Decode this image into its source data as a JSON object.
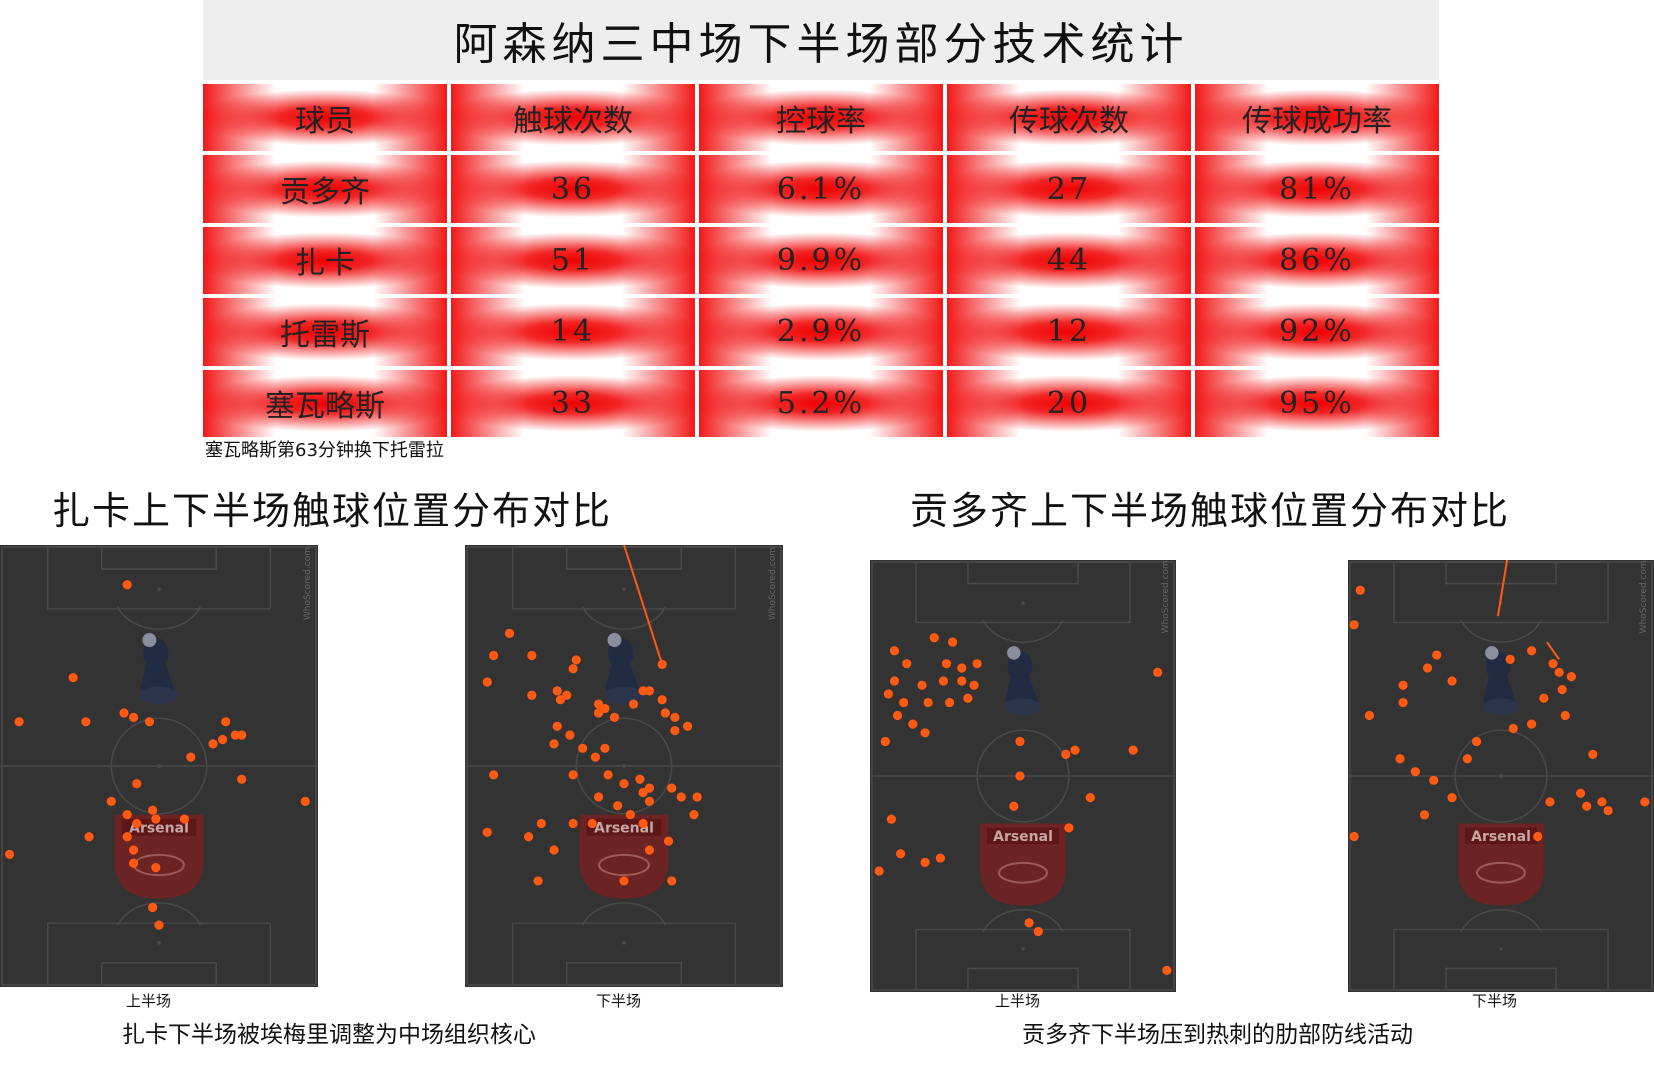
{
  "title": "阿森纳三中场下半场部分技术统计",
  "table": {
    "headers": [
      "球员",
      "触球次数",
      "控球率",
      "传球次数",
      "传球成功率"
    ],
    "rows": [
      [
        "贡多齐",
        "36",
        "6.1%",
        "27",
        "81%"
      ],
      [
        "扎卡",
        "51",
        "9.9%",
        "44",
        "86%"
      ],
      [
        "托雷斯",
        "14",
        "2.9%",
        "12",
        "92%"
      ],
      [
        "塞瓦略斯",
        "33",
        "5.2%",
        "20",
        "95%"
      ]
    ]
  },
  "note": "塞瓦略斯第63分钟换下托雷拉",
  "sections": [
    {
      "title": "扎卡上下半场触球位置分布对比",
      "caption": "扎卡下半场被埃梅里调整为中场组织核心",
      "pitches": [
        {
          "label": "上半场"
        },
        {
          "label": "下半场"
        }
      ]
    },
    {
      "title": "贡多齐上下半场触球位置分布对比",
      "caption": "贡多齐下半场压到热刺的肋部防线活动",
      "pitches": [
        {
          "label": "上半场"
        },
        {
          "label": "下半场"
        }
      ]
    }
  ],
  "pitch_common": {
    "watermark": "WhoScored.com",
    "badge_text": "Arsenal",
    "colors": {
      "pitch": "#333333",
      "lines": "#4a4a4a",
      "dot": "#ff5a14",
      "pass_line": "#ff5a14",
      "badge": "#7a1f1f",
      "spurs": "#1f2a44"
    }
  }
}
